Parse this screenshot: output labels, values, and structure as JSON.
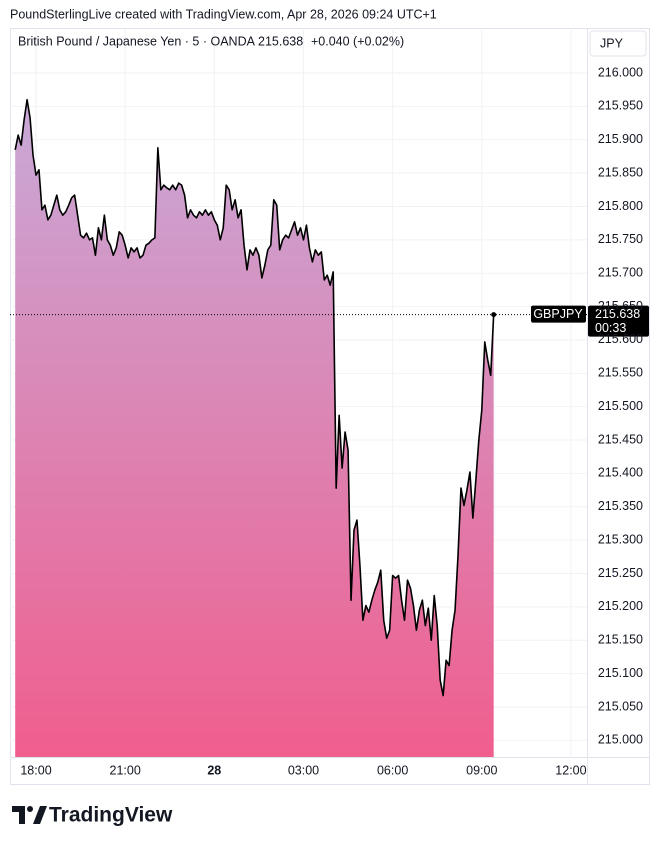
{
  "header": "PoundSterlingLive created with TradingView.com, Apr 28, 2026 09:24 UTC+1",
  "logo": "TradingView",
  "chart_data": {
    "type": "area",
    "legend": {
      "symbol": "British Pound / Japanese Yen · 5 · OANDA",
      "last": 215.638,
      "change": "+0.040 (+0.02%)"
    },
    "currency": "JPY",
    "last_price": 215.638,
    "countdown": "00:33",
    "xlim": [
      17.125,
      36.54
    ],
    "xticks": [
      {
        "value": 18,
        "label": "18:00"
      },
      {
        "value": 21,
        "label": "21:00"
      },
      {
        "value": 24,
        "label": "28"
      },
      {
        "value": 27,
        "label": "03:00"
      },
      {
        "value": 30,
        "label": "06:00"
      },
      {
        "value": 33,
        "label": "09:00"
      },
      {
        "value": 36,
        "label": "12:00"
      }
    ],
    "ylim": [
      214.975,
      216.0675
    ],
    "yticks": [
      {
        "value": 215,
        "label": "215.000"
      },
      {
        "value": 215.05,
        "label": "215.050"
      },
      {
        "value": 215.1,
        "label": "215.100"
      },
      {
        "value": 215.15,
        "label": "215.150"
      },
      {
        "value": 215.2,
        "label": "215.200"
      },
      {
        "value": 215.25,
        "label": "215.250"
      },
      {
        "value": 215.3,
        "label": "215.300"
      },
      {
        "value": 215.35,
        "label": "215.350"
      },
      {
        "value": 215.4,
        "label": "215.400"
      },
      {
        "value": 215.45,
        "label": "215.450"
      },
      {
        "value": 215.5,
        "label": "215.500"
      },
      {
        "value": 215.55,
        "label": "215.550"
      },
      {
        "value": 215.6,
        "label": "215.600"
      },
      {
        "value": 215.65,
        "label": "215.650"
      },
      {
        "value": 215.7,
        "label": "215.700"
      },
      {
        "value": 215.75,
        "label": "215.750"
      },
      {
        "value": 215.8,
        "label": "215.800"
      },
      {
        "value": 215.85,
        "label": "215.850"
      },
      {
        "value": 215.9,
        "label": "215.900"
      },
      {
        "value": 215.95,
        "label": "215.950"
      },
      {
        "value": 216,
        "label": "216.000"
      }
    ],
    "grid": true,
    "fill_top": "#c8aad8",
    "fill_bottom": "#f05e8e",
    "x": [
      17.3,
      17.4,
      17.5,
      17.6,
      17.7,
      17.8,
      17.9,
      18.0,
      18.1,
      18.2,
      18.3,
      18.4,
      18.5,
      18.6,
      18.7,
      18.8,
      18.9,
      19.0,
      19.1,
      19.2,
      19.3,
      19.4,
      19.5,
      19.6,
      19.7,
      19.8,
      19.9,
      20.0,
      20.1,
      20.2,
      20.3,
      20.4,
      20.5,
      20.6,
      20.7,
      20.8,
      20.9,
      21.0,
      21.1,
      21.2,
      21.3,
      21.4,
      21.5,
      21.6,
      21.7,
      21.8,
      21.9,
      22.0,
      22.1,
      22.2,
      22.3,
      22.4,
      22.5,
      22.6,
      22.7,
      22.8,
      22.9,
      23.0,
      23.1,
      23.2,
      23.3,
      23.4,
      23.5,
      23.6,
      23.7,
      23.8,
      23.9,
      24.0,
      24.1,
      24.2,
      24.3,
      24.4,
      24.5,
      24.6,
      24.7,
      24.8,
      24.9,
      25.0,
      25.1,
      25.2,
      25.3,
      25.4,
      25.5,
      25.6,
      25.7,
      25.8,
      25.9,
      26.0,
      26.1,
      26.2,
      26.3,
      26.4,
      26.5,
      26.6,
      26.7,
      26.8,
      26.9,
      27.0,
      27.1,
      27.2,
      27.3,
      27.4,
      27.5,
      27.6,
      27.7,
      27.8,
      27.9,
      28.0,
      28.1,
      28.2,
      28.3,
      28.4,
      28.5,
      28.6,
      28.7,
      28.8,
      28.9,
      29.0,
      29.1,
      29.2,
      29.3,
      29.4,
      29.5,
      29.6,
      29.7,
      29.8,
      29.9,
      30.0,
      30.1,
      30.2,
      30.3,
      30.4,
      30.5,
      30.6,
      30.7,
      30.8,
      30.9,
      31.0,
      31.1,
      31.2,
      31.3,
      31.4,
      31.5,
      31.6,
      31.7,
      31.8,
      31.9,
      32.0,
      32.1,
      32.2,
      32.3,
      32.4,
      32.5,
      32.6,
      32.7,
      32.8,
      32.9,
      33.0,
      33.1,
      33.2,
      33.3,
      33.4
    ],
    "series": [
      {
        "name": "GBPJPY",
        "color": "#000000",
        "values": [
          215.885,
          215.907,
          215.892,
          215.93,
          215.96,
          215.933,
          215.877,
          215.847,
          215.855,
          215.795,
          215.802,
          215.78,
          215.787,
          215.802,
          215.817,
          215.795,
          215.787,
          215.792,
          215.802,
          215.813,
          215.817,
          215.787,
          215.757,
          215.753,
          215.76,
          215.75,
          215.753,
          215.727,
          215.768,
          215.75,
          215.787,
          215.75,
          215.742,
          215.727,
          215.738,
          215.762,
          215.757,
          215.742,
          215.723,
          215.738,
          215.732,
          215.738,
          215.723,
          215.727,
          215.742,
          215.745,
          215.75,
          215.753,
          215.888,
          215.825,
          215.832,
          215.828,
          215.825,
          215.832,
          215.825,
          215.835,
          215.832,
          215.817,
          215.783,
          215.795,
          215.787,
          215.783,
          215.792,
          215.787,
          215.795,
          215.787,
          215.792,
          215.78,
          215.772,
          215.75,
          215.768,
          215.832,
          215.825,
          215.795,
          215.81,
          215.783,
          215.795,
          215.742,
          215.705,
          215.735,
          215.727,
          215.738,
          215.727,
          215.693,
          215.712,
          215.735,
          215.742,
          215.81,
          215.802,
          215.735,
          215.75,
          215.757,
          215.753,
          215.765,
          215.777,
          215.757,
          215.768,
          215.75,
          215.772,
          215.738,
          215.717,
          215.735,
          215.727,
          215.732,
          215.69,
          215.697,
          215.682,
          215.702,
          215.378,
          215.487,
          215.408,
          215.462,
          215.435,
          215.21,
          215.315,
          215.33,
          215.262,
          215.18,
          215.202,
          215.192,
          215.21,
          215.225,
          215.237,
          215.255,
          215.18,
          215.153,
          215.165,
          215.247,
          215.243,
          215.247,
          215.21,
          215.18,
          215.24,
          215.228,
          215.202,
          215.165,
          215.195,
          215.21,
          215.172,
          215.198,
          215.15,
          215.217,
          215.172,
          215.09,
          215.067,
          215.12,
          215.112,
          215.165,
          215.195,
          215.277,
          215.378,
          215.352,
          215.375,
          215.402,
          215.333,
          215.39,
          215.45,
          215.495,
          215.597,
          215.57,
          215.547,
          215.638
        ]
      }
    ]
  }
}
